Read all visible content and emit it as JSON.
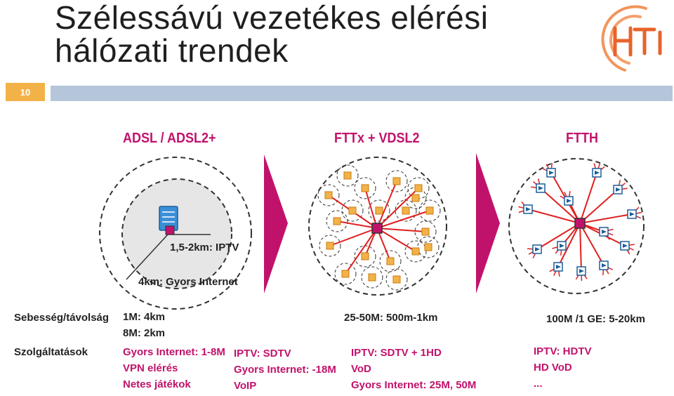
{
  "slide": {
    "title_line1": "Szélessávú vezetékes elérési",
    "title_line2": "hálózati trendek",
    "number": "10",
    "logo_text": "HTI"
  },
  "columns": {
    "adsl": {
      "heading": "ADSL / ADSL2+",
      "label_iptv": "1,5-2km: IPTV",
      "label_internet": "4km: Gyors Internet"
    },
    "fttx": {
      "heading": "FTTx + VDSL2"
    },
    "ftth": {
      "heading": "FTTH"
    }
  },
  "rows": {
    "speed_label": "Sebesség/távolság",
    "services_label": "Szolgáltatások"
  },
  "speed": {
    "adsl": [
      "1M: 4km",
      "8M: 2km"
    ],
    "fttx": "25-50M: 500m-1km",
    "ftth": "100M /1 GE: 5-20km"
  },
  "services": {
    "adsl": [
      "Gyors Internet: 1-8M",
      "VPN elérés",
      "Netes játékok"
    ],
    "adsl2": [
      "IPTV: SDTV",
      "Gyors Internet: -18M",
      "VoIP"
    ],
    "fttx": [
      "IPTV: SDTV + 1HD",
      "VoD",
      "Gyors Internet: 25M, 50M"
    ],
    "ftth": [
      "IPTV: HDTV",
      "HD VoD",
      "..."
    ]
  },
  "colors": {
    "accent": "#c1126b",
    "orange": "#f3b247",
    "bar": "#b5c6da",
    "network": "#e02020"
  }
}
